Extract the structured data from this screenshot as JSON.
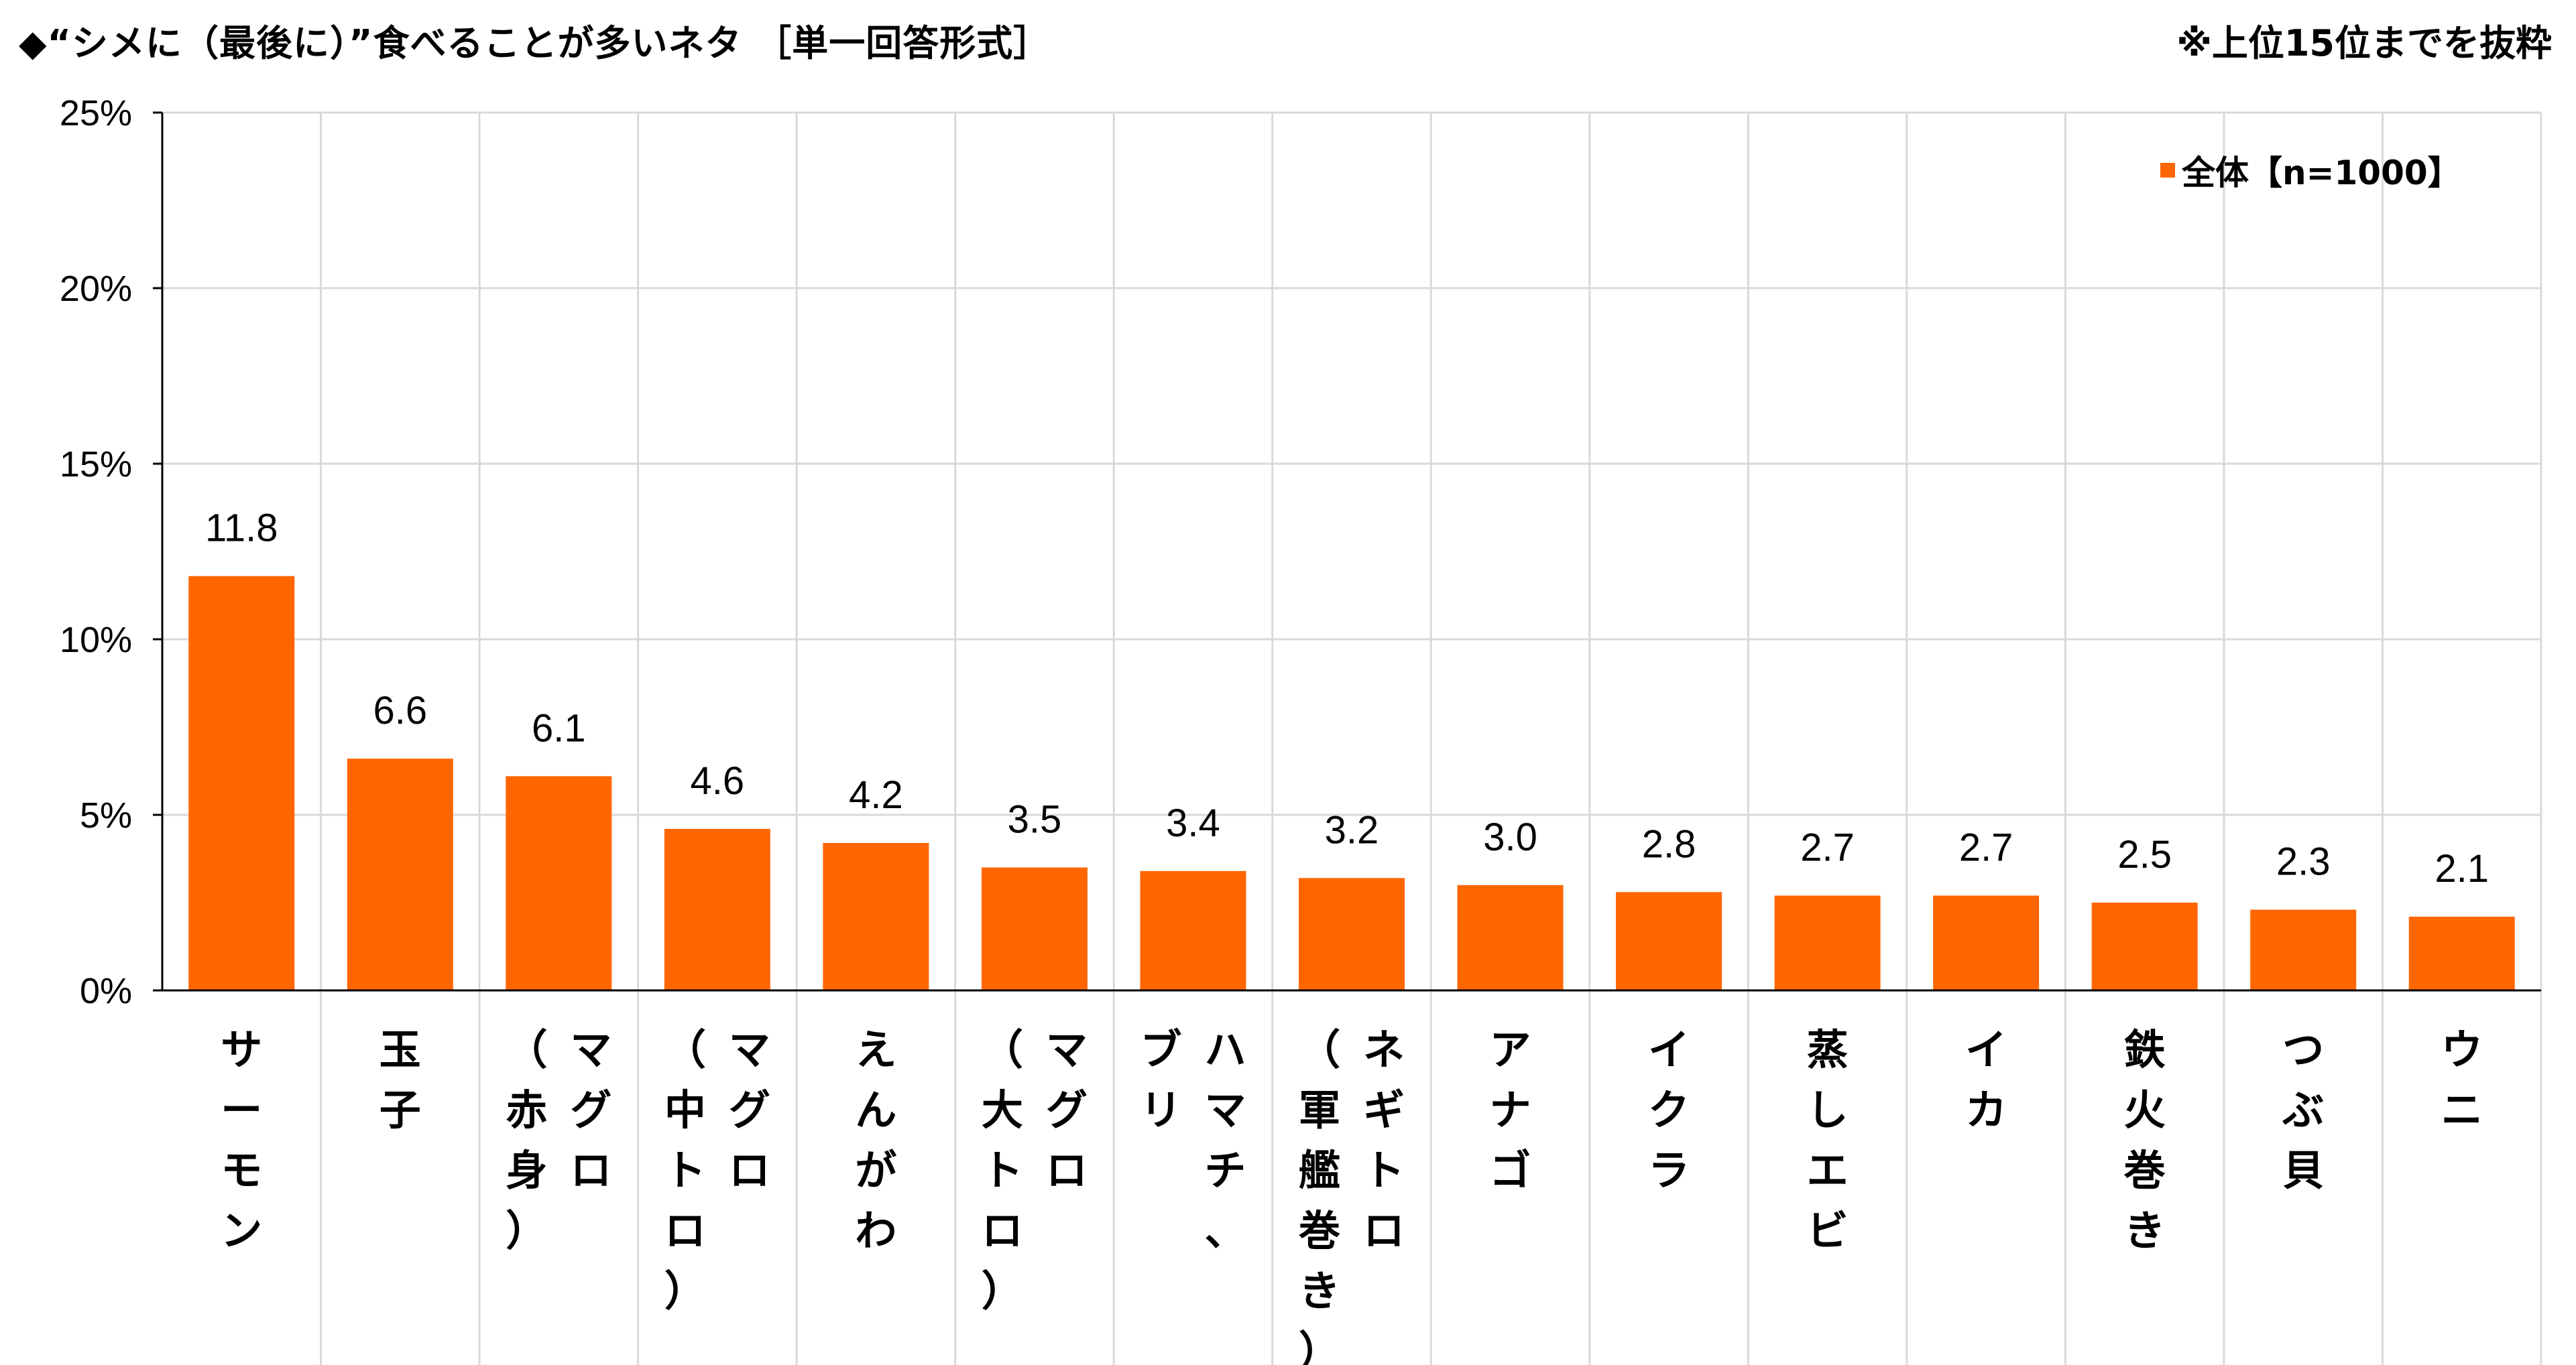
{
  "title": "◆“シメに（最後に）”食べることが多いネタ ［単一回答形式］",
  "note": "※上位15位までを抜粋",
  "chart_data": {
    "type": "bar",
    "categories": [
      "サーモン",
      "玉子",
      "マグロ（赤身）",
      "マグロ（中トロ）",
      "えんがわ",
      "マグロ（大トロ）",
      "ハマチ、ブリ",
      "ネギトロ（軍艦巻き）",
      "アナゴ",
      "イクラ",
      "蒸しエビ",
      "イカ",
      "鉄火巻き",
      "つぶ貝",
      "ウニ"
    ],
    "category_columns": [
      [
        [
          "サ",
          "ー",
          "モ",
          "ン"
        ]
      ],
      [
        [
          "玉",
          "子"
        ]
      ],
      [
        [
          "（",
          "赤",
          "身",
          "）"
        ],
        [
          "マ",
          "グ",
          "ロ"
        ]
      ],
      [
        [
          "（",
          "中",
          "ト",
          "ロ",
          "）"
        ],
        [
          "マ",
          "グ",
          "ロ"
        ]
      ],
      [
        [
          "え",
          "ん",
          "が",
          "わ"
        ]
      ],
      [
        [
          "（",
          "大",
          "ト",
          "ロ",
          "）"
        ],
        [
          "マ",
          "グ",
          "ロ"
        ]
      ],
      [
        [
          "ブ",
          "リ"
        ],
        [
          "ハ",
          "マ",
          "チ",
          "、"
        ]
      ],
      [
        [
          "（",
          "軍",
          "艦",
          "巻",
          "き",
          "）"
        ],
        [
          "ネ",
          "ギ",
          "ト",
          "ロ"
        ]
      ],
      [
        [
          "ア",
          "ナ",
          "ゴ"
        ]
      ],
      [
        [
          "イ",
          "ク",
          "ラ"
        ]
      ],
      [
        [
          "蒸",
          "し",
          "エ",
          "ビ"
        ]
      ],
      [
        [
          "イ",
          "カ"
        ]
      ],
      [
        [
          "鉄",
          "火",
          "巻",
          "き"
        ]
      ],
      [
        [
          "つ",
          "ぶ",
          "貝"
        ]
      ],
      [
        [
          "ウ",
          "ニ"
        ]
      ]
    ],
    "series": [
      {
        "name": "全体【n=1000】",
        "values": [
          11.8,
          6.6,
          6.1,
          4.6,
          4.2,
          3.5,
          3.4,
          3.2,
          3.0,
          2.8,
          2.7,
          2.7,
          2.5,
          2.3,
          2.1
        ]
      }
    ],
    "value_labels": [
      "11.8",
      "6.6",
      "6.1",
      "4.6",
      "4.2",
      "3.5",
      "3.4",
      "3.2",
      "3.0",
      "2.8",
      "2.7",
      "2.7",
      "2.5",
      "2.3",
      "2.1"
    ],
    "ylim": [
      0,
      25
    ],
    "yticks": [
      0,
      5,
      10,
      15,
      20,
      25
    ],
    "ytick_labels": [
      "0%",
      "5%",
      "10%",
      "15%",
      "20%",
      "25%"
    ],
    "xlabel": "",
    "ylabel": "",
    "grid": true,
    "legend_position": "top-right",
    "colors": {
      "bar": "#FF6600",
      "grid": "#D9D9D9",
      "axis": "#000000"
    }
  }
}
